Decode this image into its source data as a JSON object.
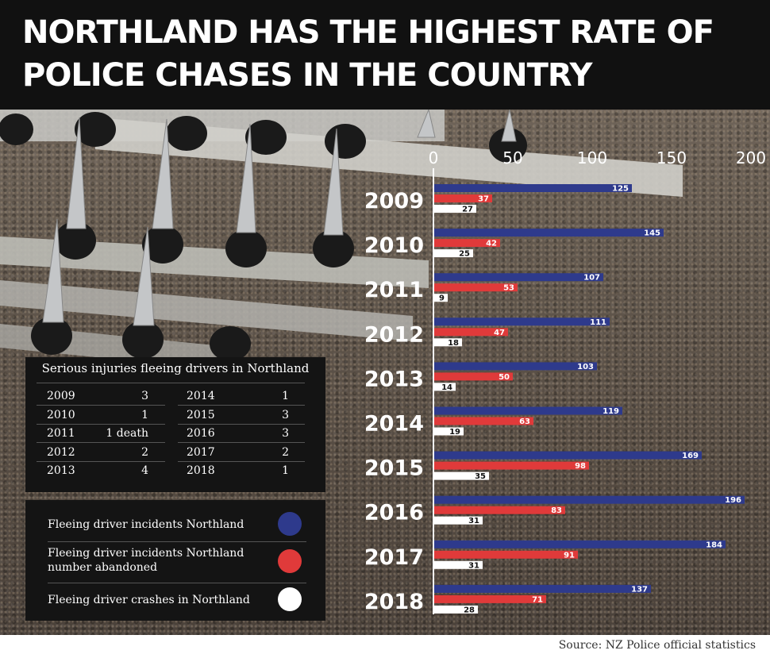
{
  "title": "NORTHLAND HAS THE HIGHEST RATE OF POLICE CHASES IN THE COUNTRY",
  "source": "Source: NZ Police official statistics",
  "chart_data": {
    "type": "bar",
    "orientation": "horizontal",
    "categories": [
      "2009",
      "2010",
      "2011",
      "2012",
      "2013",
      "2014",
      "2015",
      "2016",
      "2017",
      "2018"
    ],
    "x_ticks": [
      "0",
      "50",
      "100",
      "150",
      "200"
    ],
    "xlim": [
      0,
      200
    ],
    "grid": false,
    "legend": "bottom-left",
    "series": [
      {
        "name": "Fleeing driver incidents Northland",
        "color": "#2e3a8c",
        "values": [
          125,
          145,
          107,
          111,
          103,
          119,
          169,
          196,
          184,
          137
        ]
      },
      {
        "name": "Fleeing driver incidents Northland\nnumber abandoned",
        "color": "#e03a3a",
        "values": [
          37,
          42,
          53,
          47,
          50,
          63,
          98,
          83,
          91,
          71
        ]
      },
      {
        "name": "Fleeing driver crashes in Northland",
        "color": "#ffffff",
        "values": [
          27,
          25,
          9,
          18,
          14,
          19,
          35,
          31,
          31,
          28
        ]
      }
    ]
  },
  "injury_table": {
    "title": "Serious injuries fleeing drivers in Northland",
    "rows": [
      {
        "year": "2009",
        "value": "3"
      },
      {
        "year": "2010",
        "value": "1"
      },
      {
        "year": "2011",
        "value": "1 death"
      },
      {
        "year": "2012",
        "value": "2"
      },
      {
        "year": "2013",
        "value": "4"
      },
      {
        "year": "2014",
        "value": "1"
      },
      {
        "year": "2015",
        "value": "3"
      },
      {
        "year": "2016",
        "value": "3"
      },
      {
        "year": "2017",
        "value": "2"
      },
      {
        "year": "2018",
        "value": "1"
      }
    ]
  }
}
